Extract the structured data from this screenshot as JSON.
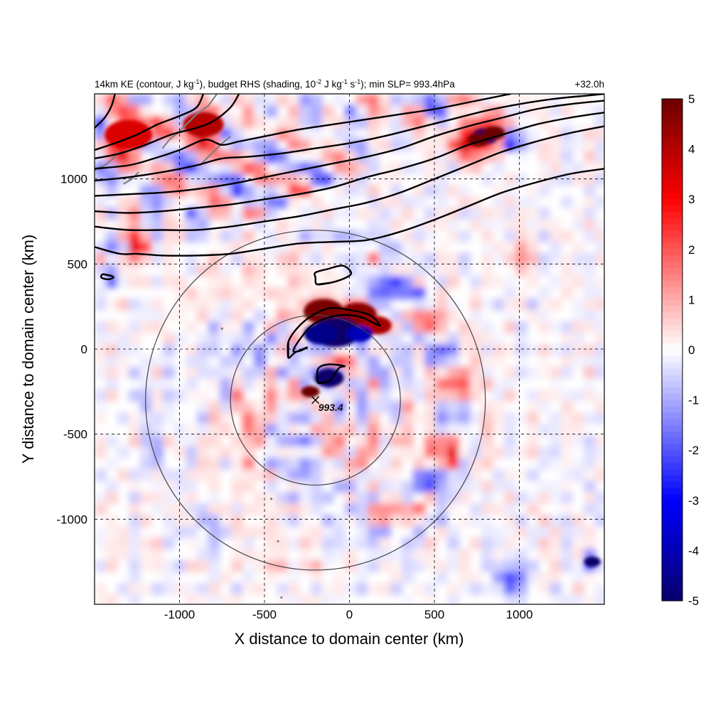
{
  "chart_data": {
    "type": "heatmap",
    "title_left": {
      "base": "14km KE (contour, J kg",
      "sup1": "-1",
      "mid1": "), budget RHS (shading, 10",
      "sup2": "-2",
      "mid2": " J kg",
      "sup3": "-1",
      "mid3": " s",
      "sup4": "-1",
      "end": "); min SLP= 993.4hPa"
    },
    "title_right": "+32.0h",
    "xlabel": "X distance to domain center (km)",
    "ylabel": "Y distance to domain center (km)",
    "xlim": [
      -1500,
      1500
    ],
    "ylim": [
      -1500,
      1500
    ],
    "x_ticks": [
      -1000,
      -500,
      0,
      500,
      1000
    ],
    "x_tick_labels": [
      "-1000",
      "-500",
      "0",
      "500",
      "1000"
    ],
    "y_ticks": [
      -1000,
      -500,
      0,
      500,
      1000
    ],
    "y_tick_labels": [
      "-1000",
      "-500",
      "0",
      "500",
      "1000"
    ],
    "grid": true,
    "colorbar": {
      "range": [
        -5,
        5
      ],
      "ticks": [
        5,
        4,
        3,
        2,
        1,
        0,
        -1,
        -2,
        -3,
        -4,
        -5
      ],
      "tick_labels": [
        "5",
        "4",
        "3",
        "2",
        "1",
        "0",
        "-1",
        "-2",
        "-3",
        "-4",
        "-5"
      ],
      "colors": {
        "min": "#08006b",
        "low": "#0000ff",
        "mid": "#ffffff",
        "high": "#ff0000",
        "max": "#6b0000"
      }
    },
    "storm_center": {
      "x": -200,
      "y": -300,
      "min_slp_label": "993.4"
    },
    "circles_radius_km": [
      500,
      1000
    ],
    "ke_contours": [
      {
        "name": "ke-contour-1",
        "points": [
          [
            -1500,
            600
          ],
          [
            -1350,
            560
          ],
          [
            -1250,
            560
          ],
          [
            -1100,
            550
          ],
          [
            -900,
            550
          ],
          [
            -700,
            560
          ],
          [
            -500,
            590
          ],
          [
            -300,
            620
          ],
          [
            -100,
            630
          ],
          [
            100,
            640
          ],
          [
            300,
            690
          ],
          [
            500,
            760
          ],
          [
            700,
            840
          ],
          [
            900,
            920
          ],
          [
            1100,
            980
          ],
          [
            1300,
            1030
          ],
          [
            1500,
            1060
          ]
        ]
      },
      {
        "name": "ke-contour-2",
        "points": [
          [
            -1500,
            720
          ],
          [
            -1300,
            700
          ],
          [
            -1100,
            700
          ],
          [
            -900,
            700
          ],
          [
            -700,
            720
          ],
          [
            -500,
            750
          ],
          [
            -300,
            780
          ],
          [
            -100,
            820
          ],
          [
            100,
            860
          ],
          [
            300,
            920
          ],
          [
            500,
            1000
          ],
          [
            700,
            1080
          ],
          [
            900,
            1160
          ],
          [
            1100,
            1220
          ],
          [
            1300,
            1270
          ],
          [
            1500,
            1310
          ]
        ]
      },
      {
        "name": "ke-contour-3",
        "points": [
          [
            -1500,
            810
          ],
          [
            -1300,
            800
          ],
          [
            -1100,
            810
          ],
          [
            -900,
            830
          ],
          [
            -700,
            850
          ],
          [
            -500,
            880
          ],
          [
            -300,
            910
          ],
          [
            -100,
            950
          ],
          [
            100,
            1010
          ],
          [
            300,
            1060
          ],
          [
            500,
            1120
          ],
          [
            700,
            1200
          ],
          [
            900,
            1260
          ],
          [
            1100,
            1320
          ],
          [
            1300,
            1360
          ],
          [
            1500,
            1390
          ]
        ]
      },
      {
        "name": "ke-contour-4",
        "points": [
          [
            -1500,
            900
          ],
          [
            -1300,
            910
          ],
          [
            -1100,
            920
          ],
          [
            -900,
            940
          ],
          [
            -700,
            970
          ],
          [
            -500,
            1010
          ],
          [
            -300,
            1050
          ],
          [
            -100,
            1090
          ],
          [
            100,
            1130
          ],
          [
            300,
            1180
          ],
          [
            500,
            1250
          ],
          [
            700,
            1310
          ],
          [
            900,
            1360
          ],
          [
            1100,
            1410
          ],
          [
            1300,
            1440
          ],
          [
            1500,
            1460
          ]
        ]
      },
      {
        "name": "ke-contour-5",
        "points": [
          [
            -1500,
            990
          ],
          [
            -1300,
            1010
          ],
          [
            -1100,
            1040
          ],
          [
            -900,
            1080
          ],
          [
            -750,
            1120
          ],
          [
            -600,
            1130
          ],
          [
            -400,
            1150
          ],
          [
            -200,
            1180
          ],
          [
            0,
            1210
          ],
          [
            200,
            1250
          ],
          [
            400,
            1300
          ],
          [
            600,
            1350
          ],
          [
            800,
            1400
          ],
          [
            1000,
            1440
          ],
          [
            1200,
            1470
          ],
          [
            1400,
            1490
          ],
          [
            1500,
            1500
          ]
        ]
      },
      {
        "name": "ke-contour-6",
        "points": [
          [
            -1500,
            1060
          ],
          [
            -1300,
            1080
          ],
          [
            -1150,
            1120
          ],
          [
            -1000,
            1170
          ],
          [
            -850,
            1230
          ],
          [
            -750,
            1200
          ],
          [
            -650,
            1220
          ],
          [
            -500,
            1250
          ],
          [
            -300,
            1290
          ],
          [
            -100,
            1320
          ],
          [
            100,
            1350
          ],
          [
            300,
            1380
          ],
          [
            500,
            1410
          ],
          [
            700,
            1450
          ],
          [
            850,
            1480
          ],
          [
            950,
            1500
          ]
        ]
      },
      {
        "name": "ke-contour-7",
        "points": [
          [
            -1500,
            1120
          ],
          [
            -1350,
            1150
          ],
          [
            -1200,
            1200
          ],
          [
            -1050,
            1260
          ],
          [
            -900,
            1300
          ],
          [
            -800,
            1340
          ],
          [
            -700,
            1420
          ],
          [
            -650,
            1500
          ]
        ]
      },
      {
        "name": "ke-contour-8",
        "points": [
          [
            -1500,
            1170
          ],
          [
            -1380,
            1210
          ],
          [
            -1250,
            1260
          ],
          [
            -1130,
            1320
          ],
          [
            -1000,
            1370
          ],
          [
            -900,
            1420
          ],
          [
            -860,
            1500
          ]
        ]
      },
      {
        "name": "ke-contour-9",
        "points": [
          [
            -1500,
            1300
          ],
          [
            -1440,
            1360
          ],
          [
            -1400,
            1430
          ],
          [
            -1380,
            1500
          ]
        ]
      }
    ],
    "ke_closed_contours": [
      {
        "name": "ke-closed-contour-north",
        "points": [
          [
            -190,
            380
          ],
          [
            -110,
            390
          ],
          [
            -20,
            420
          ],
          [
            10,
            450
          ],
          [
            -40,
            490
          ],
          [
            -130,
            470
          ],
          [
            -200,
            450
          ],
          [
            -200,
            420
          ]
        ]
      },
      {
        "name": "ke-closed-contour-arc",
        "points": [
          [
            -360,
            -50
          ],
          [
            -360,
            40
          ],
          [
            -310,
            120
          ],
          [
            -230,
            190
          ],
          [
            -120,
            240
          ],
          [
            0,
            230
          ],
          [
            120,
            200
          ],
          [
            180,
            140
          ],
          [
            150,
            150
          ],
          [
            60,
            190
          ],
          [
            -40,
            200
          ],
          [
            -140,
            180
          ],
          [
            -220,
            140
          ],
          [
            -290,
            60
          ],
          [
            -330,
            -10
          ],
          [
            -290,
            -10
          ],
          [
            -250,
            10
          ],
          [
            -320,
            -20
          ]
        ]
      },
      {
        "name": "ke-closed-contour-core",
        "points": [
          [
            -180,
            -200
          ],
          [
            -120,
            -190
          ],
          [
            -90,
            -150
          ],
          [
            -60,
            -110
          ],
          [
            -30,
            -100
          ],
          [
            -120,
            -90
          ],
          [
            -180,
            -110
          ],
          [
            -190,
            -160
          ]
        ]
      },
      {
        "name": "ke-closed-contour-west",
        "points": [
          [
            -1450,
            440
          ],
          [
            -1400,
            430
          ],
          [
            -1390,
            420
          ],
          [
            -1420,
            410
          ],
          [
            -1460,
            420
          ]
        ]
      }
    ]
  }
}
